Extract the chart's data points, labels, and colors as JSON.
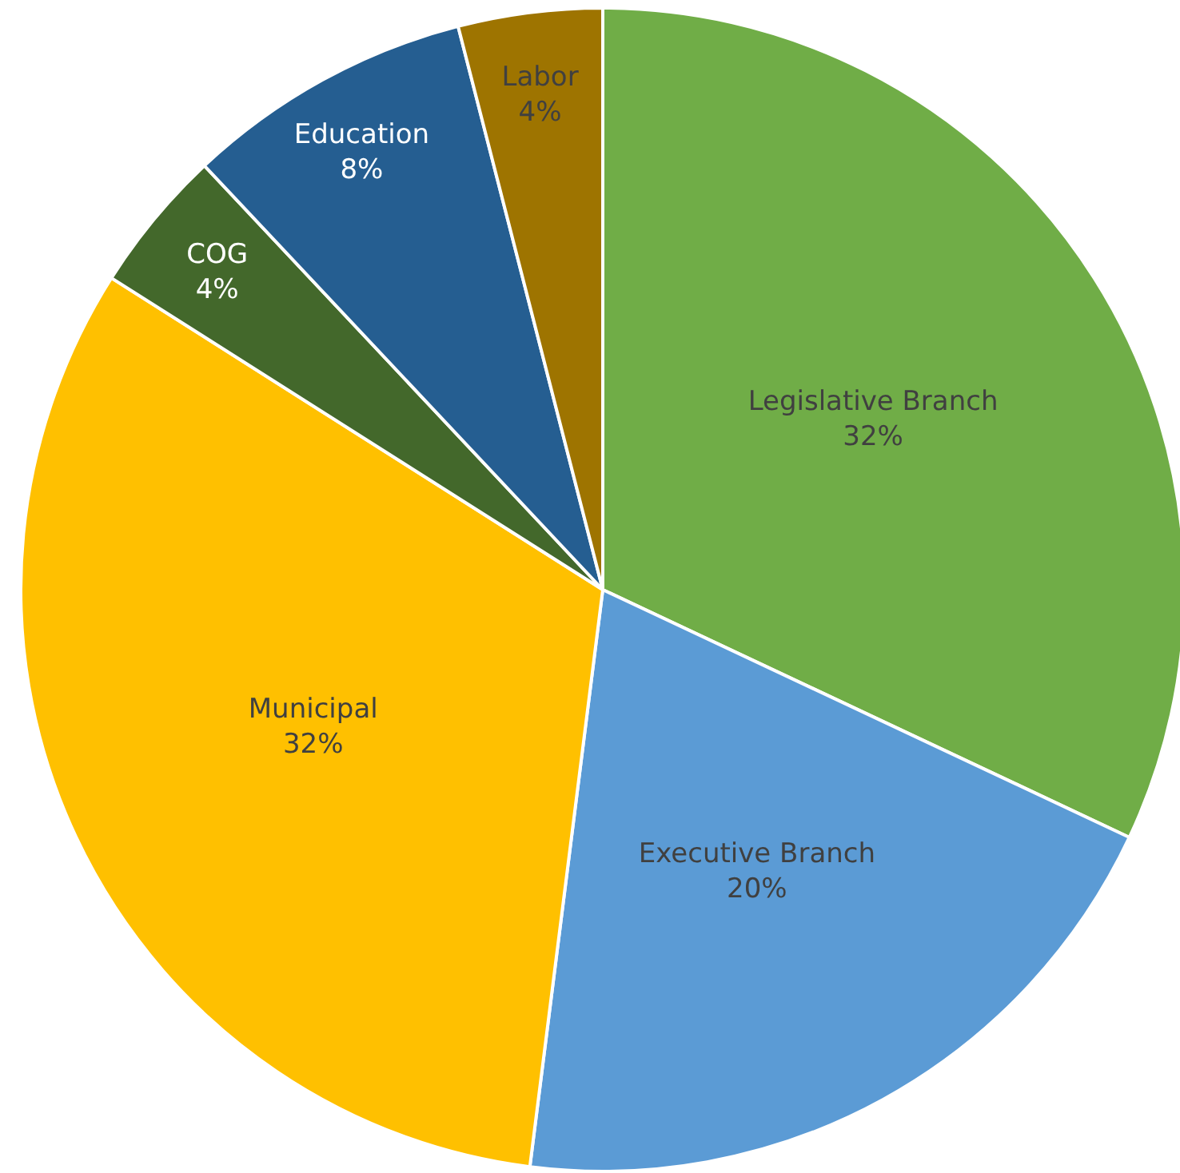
{
  "chart_data": {
    "type": "pie",
    "categories": [
      "Legislative Branch",
      "Executive Branch",
      "Municipal",
      "COG",
      "Education",
      "Labor"
    ],
    "values": [
      32,
      20,
      32,
      4,
      8,
      4
    ],
    "colors": [
      "#70ad47",
      "#5b9bd5",
      "#ffc000",
      "#43682b",
      "#255e91",
      "#9e7400"
    ],
    "value_labels": [
      "32%",
      "20%",
      "32%",
      "4%",
      "8%",
      "4%"
    ]
  }
}
